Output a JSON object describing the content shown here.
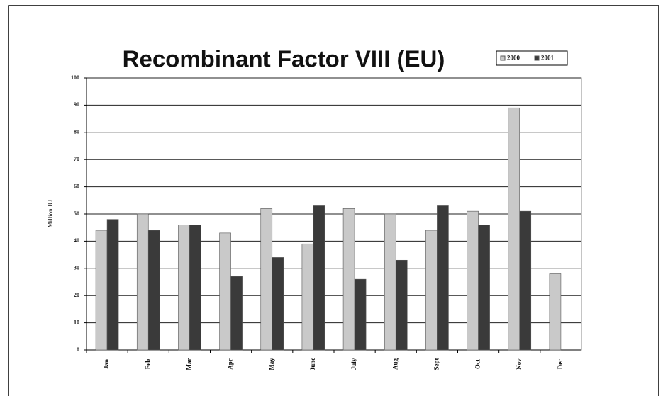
{
  "chart_data": {
    "type": "bar",
    "title": "Recombinant Factor VIII (EU)",
    "y_label": "Million IU",
    "categories": [
      "Jan",
      "Feb",
      "Mar",
      "Apr",
      "May",
      "June",
      "July",
      "Aug",
      "Sept",
      "Oct",
      "Nov",
      "Dec"
    ],
    "series": [
      {
        "name": "2000",
        "color": "#c9c9c9",
        "values": [
          44,
          50,
          46,
          43,
          52,
          39,
          52,
          50,
          44,
          51,
          89,
          28
        ]
      },
      {
        "name": "2001",
        "color": "#3a3a3a",
        "values": [
          48,
          44,
          46,
          27,
          34,
          53,
          26,
          33,
          53,
          46,
          51,
          null
        ]
      }
    ],
    "ylim": [
      0,
      100
    ],
    "yticks": [
      0,
      10,
      20,
      30,
      40,
      50,
      60,
      70,
      80,
      90,
      100
    ],
    "grid": true,
    "legend": "top-right"
  }
}
